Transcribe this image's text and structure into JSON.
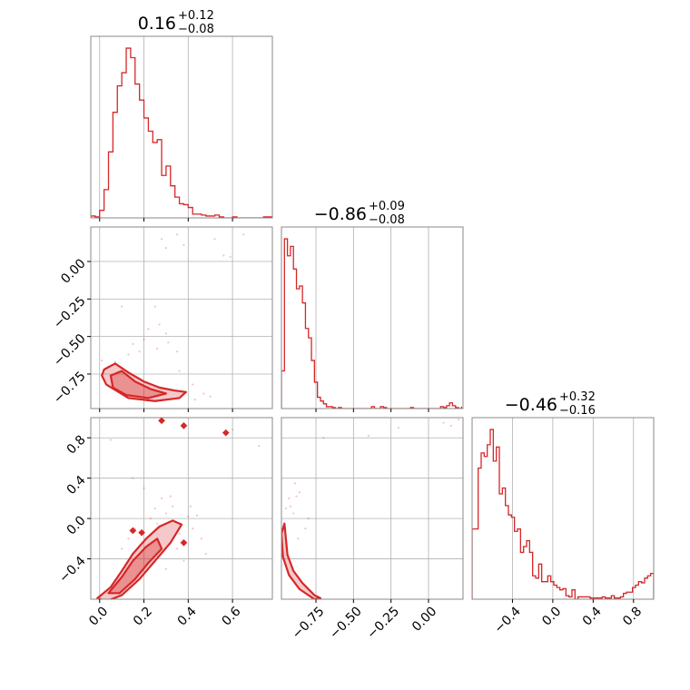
{
  "chart_data": {
    "type": "corner",
    "color": "#d62728",
    "grid": true,
    "parameters": [
      {
        "index": 0,
        "range": [
          -0.04,
          0.78
        ],
        "ticks": [
          0.0,
          0.2,
          0.4,
          0.6
        ],
        "tick_labels": [
          "0.0",
          "0.2",
          "0.4",
          "0.6"
        ],
        "title": {
          "median": "0.16",
          "plus": "+0.12",
          "minus": "−0.08"
        },
        "hist_bins": [
          -0.04,
          -0.02,
          0.0,
          0.02,
          0.04,
          0.06,
          0.08,
          0.1,
          0.12,
          0.14,
          0.16,
          0.18,
          0.2,
          0.22,
          0.24,
          0.26,
          0.28,
          0.3,
          0.32,
          0.34,
          0.36,
          0.38,
          0.4,
          0.42,
          0.44,
          0.46,
          0.48,
          0.5,
          0.52,
          0.54,
          0.56,
          0.58,
          0.6,
          0.62,
          0.64,
          0.66,
          0.68,
          0.7,
          0.72,
          0.74,
          0.76,
          0.78
        ],
        "hist_counts": [
          2,
          1,
          8,
          30,
          70,
          112,
          140,
          154,
          180,
          170,
          142,
          125,
          106,
          92,
          80,
          83,
          45,
          55,
          34,
          22,
          15,
          14,
          11,
          4,
          4,
          3,
          2,
          2,
          3,
          1,
          0,
          0,
          1,
          0,
          0,
          0,
          0,
          0,
          0,
          1,
          1
        ]
      },
      {
        "index": 1,
        "range": [
          -0.98,
          0.23
        ],
        "ticks": [
          -0.75,
          -0.5,
          -0.25,
          0.0
        ],
        "tick_labels": [
          "−0.75",
          "−0.50",
          "−0.25",
          "0.00"
        ],
        "title": {
          "median": "−0.86",
          "plus": "+0.09",
          "minus": "−0.08"
        },
        "hist_bins": [
          -0.98,
          -0.96,
          -0.94,
          -0.92,
          -0.9,
          -0.88,
          -0.86,
          -0.84,
          -0.82,
          -0.8,
          -0.78,
          -0.76,
          -0.74,
          -0.72,
          -0.7,
          -0.68,
          -0.66,
          -0.64,
          -0.62,
          -0.6,
          -0.58,
          -0.56,
          -0.54,
          -0.52,
          -0.5,
          -0.48,
          -0.46,
          -0.44,
          -0.42,
          -0.4,
          -0.38,
          -0.36,
          -0.34,
          -0.32,
          -0.3,
          -0.28,
          -0.26,
          -0.24,
          -0.22,
          -0.2,
          -0.18,
          -0.16,
          -0.14,
          -0.12,
          -0.1,
          -0.08,
          -0.06,
          -0.04,
          -0.02,
          0.0,
          0.02,
          0.04,
          0.06,
          0.08,
          0.1,
          0.12,
          0.14,
          0.16,
          0.18,
          0.2,
          0.22
        ],
        "hist_counts": [
          40,
          180,
          162,
          172,
          148,
          127,
          130,
          112,
          85,
          75,
          51,
          28,
          12,
          8,
          5,
          2,
          2,
          1,
          0,
          1,
          0,
          0,
          0,
          0,
          0,
          0,
          0,
          0,
          0,
          0,
          2,
          0,
          0,
          2,
          1,
          0,
          0,
          0,
          0,
          0,
          0,
          0,
          0,
          1,
          0,
          0,
          0,
          0,
          0,
          0,
          0,
          0,
          0,
          2,
          1,
          3,
          6,
          3,
          1,
          0,
          2
        ]
      },
      {
        "index": 2,
        "range": [
          -0.8,
          1.0
        ],
        "ticks": [
          -0.4,
          0.0,
          0.4,
          0.8
        ],
        "tick_labels": [
          "−0.4",
          "0.0",
          "0.4",
          "0.8"
        ],
        "title": {
          "median": "−0.46",
          "plus": "+0.32",
          "minus": "−0.16"
        },
        "hist_bins": [
          -0.8,
          -0.77,
          -0.74,
          -0.71,
          -0.68,
          -0.65,
          -0.62,
          -0.59,
          -0.56,
          -0.53,
          -0.5,
          -0.47,
          -0.44,
          -0.41,
          -0.38,
          -0.35,
          -0.32,
          -0.29,
          -0.26,
          -0.23,
          -0.2,
          -0.17,
          -0.14,
          -0.11,
          -0.08,
          -0.05,
          -0.02,
          0.01,
          0.04,
          0.07,
          0.1,
          0.13,
          0.16,
          0.19,
          0.22,
          0.25,
          0.28,
          0.31,
          0.34,
          0.37,
          0.4,
          0.43,
          0.46,
          0.49,
          0.52,
          0.55,
          0.58,
          0.61,
          0.64,
          0.67,
          0.7,
          0.73,
          0.76,
          0.79,
          0.82,
          0.85,
          0.88,
          0.91,
          0.94,
          0.97,
          1.0
        ],
        "hist_counts": [
          60,
          60,
          112,
          125,
          122,
          132,
          145,
          118,
          130,
          90,
          95,
          80,
          72,
          70,
          58,
          60,
          40,
          45,
          50,
          40,
          20,
          18,
          30,
          15,
          15,
          20,
          15,
          12,
          10,
          8,
          9,
          3,
          2,
          8,
          0,
          2,
          2,
          2,
          2,
          1,
          1,
          1,
          1,
          2,
          1,
          1,
          3,
          1,
          1,
          2,
          5,
          6,
          6,
          10,
          12,
          15,
          14,
          18,
          20,
          22
        ]
      }
    ],
    "pairs": [
      {
        "x_param": 0,
        "y_param": 1,
        "fill_contours": [
          [
            [
              0.02,
              -0.72
            ],
            [
              0.07,
              -0.68
            ],
            [
              0.13,
              -0.74
            ],
            [
              0.2,
              -0.8
            ],
            [
              0.27,
              -0.84
            ],
            [
              0.34,
              -0.86
            ],
            [
              0.39,
              -0.87
            ],
            [
              0.36,
              -0.91
            ],
            [
              0.25,
              -0.93
            ],
            [
              0.13,
              -0.91
            ],
            [
              0.03,
              -0.82
            ],
            [
              0.01,
              -0.76
            ]
          ],
          [
            [
              0.05,
              -0.76
            ],
            [
              0.1,
              -0.73
            ],
            [
              0.16,
              -0.8
            ],
            [
              0.23,
              -0.85
            ],
            [
              0.3,
              -0.88
            ],
            [
              0.22,
              -0.91
            ],
            [
              0.12,
              -0.89
            ],
            [
              0.06,
              -0.84
            ]
          ]
        ],
        "points": [
          [
            0.28,
            0.15
          ],
          [
            0.3,
            0.09
          ],
          [
            0.35,
            0.18
          ],
          [
            0.52,
            0.15
          ],
          [
            0.59,
            0.03
          ],
          [
            0.56,
            0.04
          ],
          [
            0.38,
            0.11
          ],
          [
            0.1,
            -0.3
          ],
          [
            0.27,
            -0.42
          ],
          [
            0.25,
            -0.3
          ],
          [
            0.3,
            -0.48
          ],
          [
            0.2,
            -0.52
          ],
          [
            0.18,
            -0.6
          ],
          [
            0.01,
            -0.66
          ],
          [
            0.04,
            -0.7
          ],
          [
            0.43,
            -0.92
          ],
          [
            0.47,
            -0.88
          ],
          [
            0.13,
            -0.62
          ],
          [
            0.35,
            -0.6
          ],
          [
            0.22,
            -0.45
          ],
          [
            0.65,
            0.18
          ],
          [
            0.15,
            -0.55
          ],
          [
            0.31,
            -0.54
          ],
          [
            0.26,
            -0.58
          ],
          [
            0.07,
            -0.67
          ],
          [
            0.42,
            -0.82
          ],
          [
            0.5,
            -0.9
          ],
          [
            0.36,
            -0.73
          ]
        ]
      },
      {
        "x_param": 0,
        "y_param": 2,
        "fill_contours": [
          [
            [
              -0.01,
              -0.79
            ],
            [
              0.05,
              -0.68
            ],
            [
              0.1,
              -0.52
            ],
            [
              0.15,
              -0.35
            ],
            [
              0.21,
              -0.2
            ],
            [
              0.27,
              -0.08
            ],
            [
              0.33,
              -0.02
            ],
            [
              0.37,
              -0.06
            ],
            [
              0.32,
              -0.24
            ],
            [
              0.25,
              -0.42
            ],
            [
              0.18,
              -0.6
            ],
            [
              0.1,
              -0.76
            ],
            [
              0.03,
              -0.82
            ]
          ],
          [
            [
              0.04,
              -0.74
            ],
            [
              0.1,
              -0.58
            ],
            [
              0.15,
              -0.42
            ],
            [
              0.21,
              -0.28
            ],
            [
              0.26,
              -0.2
            ],
            [
              0.28,
              -0.3
            ],
            [
              0.22,
              -0.44
            ],
            [
              0.16,
              -0.6
            ],
            [
              0.09,
              -0.74
            ]
          ]
        ],
        "isolated_blobs": [
          [
            0.28,
            0.97
          ],
          [
            0.38,
            0.92
          ],
          [
            0.57,
            0.85
          ],
          [
            0.38,
            -0.24
          ],
          [
            0.19,
            -0.14
          ],
          [
            0.15,
            -0.12
          ]
        ],
        "points": [
          [
            0.05,
            0.78
          ],
          [
            0.28,
            0.2
          ],
          [
            0.4,
            0.02
          ],
          [
            0.33,
            0.12
          ],
          [
            0.6,
            0.88
          ],
          [
            0.72,
            0.72
          ],
          [
            0.42,
            -0.1
          ],
          [
            0.3,
            0.05
          ],
          [
            0.25,
            0.1
          ],
          [
            0.16,
            -0.1
          ],
          [
            0.44,
            0.03
          ],
          [
            0.2,
            0.3
          ],
          [
            0.15,
            0.4
          ],
          [
            0.35,
            -0.3
          ],
          [
            0.46,
            -0.2
          ],
          [
            0.3,
            -0.5
          ],
          [
            0.38,
            -0.42
          ],
          [
            0.23,
            0.0
          ],
          [
            0.1,
            -0.3
          ],
          [
            0.32,
            0.22
          ],
          [
            0.41,
            0.12
          ],
          [
            0.48,
            -0.35
          ],
          [
            0.26,
            -0.05
          ],
          [
            0.13,
            -0.2
          ],
          [
            0.36,
            -0.15
          ]
        ]
      },
      {
        "x_param": 1,
        "y_param": 2,
        "fill_contours": [
          [
            [
              -0.96,
              -0.05
            ],
            [
              -0.94,
              -0.36
            ],
            [
              -0.9,
              -0.52
            ],
            [
              -0.84,
              -0.64
            ],
            [
              -0.76,
              -0.76
            ],
            [
              -0.72,
              -0.79
            ],
            [
              -0.76,
              -0.8
            ],
            [
              -0.86,
              -0.7
            ],
            [
              -0.93,
              -0.56
            ],
            [
              -0.97,
              -0.38
            ],
            [
              -0.98,
              -0.15
            ]
          ]
        ],
        "points": [
          [
            -0.88,
            0.22
          ],
          [
            -0.92,
            0.12
          ],
          [
            -0.95,
            0.1
          ],
          [
            -0.9,
            0.05
          ],
          [
            -0.86,
            0.26
          ],
          [
            -0.82,
            -0.1
          ],
          [
            -0.7,
            0.8
          ],
          [
            0.1,
            0.95
          ],
          [
            0.15,
            0.92
          ],
          [
            0.2,
            0.98
          ],
          [
            -0.4,
            0.82
          ],
          [
            -0.2,
            0.9
          ],
          [
            -0.89,
            0.35
          ],
          [
            -0.93,
            0.2
          ],
          [
            -0.8,
            0.0
          ],
          [
            -0.87,
            -0.2
          ]
        ]
      }
    ]
  }
}
